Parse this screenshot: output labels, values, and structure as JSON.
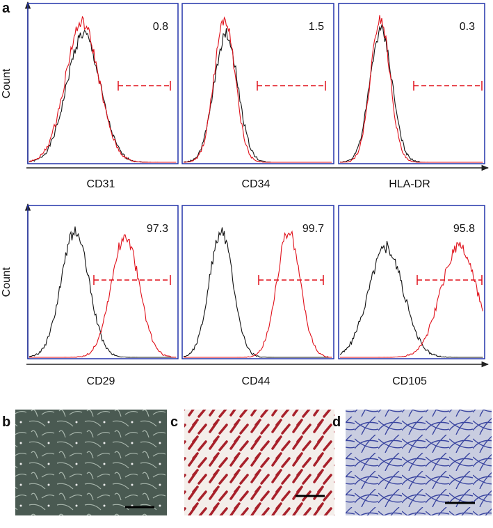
{
  "panel_a": {
    "label": "a",
    "rows": [
      {
        "y_label": "Count",
        "plots": [
          {
            "marker": "CD31",
            "percent": 0.8
          },
          {
            "marker": "CD34",
            "percent": 1.5
          },
          {
            "marker": "HLA-DR",
            "percent": 0.3
          }
        ]
      },
      {
        "y_label": "Count",
        "plots": [
          {
            "marker": "CD29",
            "percent": 97.3
          },
          {
            "marker": "CD44",
            "percent": 99.7
          },
          {
            "marker": "CD105",
            "percent": 95.8
          }
        ]
      }
    ]
  },
  "panel_b": {
    "label": "b"
  },
  "panel_c": {
    "label": "c"
  },
  "panel_d": {
    "label": "d"
  }
}
